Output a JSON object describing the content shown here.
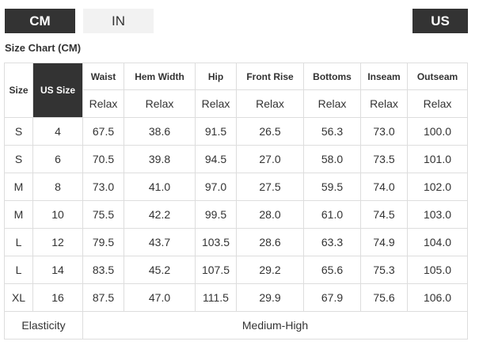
{
  "units": {
    "cm_label": "CM",
    "in_label": "IN",
    "region_label": "US"
  },
  "chart": {
    "title": "Size Chart (CM)"
  },
  "table": {
    "size_header": "Size",
    "us_size_header": "US Size",
    "columns": [
      "Waist",
      "Hem Width",
      "Hip",
      "Front Rise",
      "Bottoms",
      "Inseam",
      "Outseam"
    ],
    "fit": [
      "Relax",
      "Relax",
      "Relax",
      "Relax",
      "Relax",
      "Relax",
      "Relax"
    ],
    "rows": [
      {
        "size": "S",
        "us": "4",
        "values": [
          "67.5",
          "38.6",
          "91.5",
          "26.5",
          "56.3",
          "73.0",
          "100.0"
        ]
      },
      {
        "size": "S",
        "us": "6",
        "values": [
          "70.5",
          "39.8",
          "94.5",
          "27.0",
          "58.0",
          "73.5",
          "101.0"
        ]
      },
      {
        "size": "M",
        "us": "8",
        "values": [
          "73.0",
          "41.0",
          "97.0",
          "27.5",
          "59.5",
          "74.0",
          "102.0"
        ]
      },
      {
        "size": "M",
        "us": "10",
        "values": [
          "75.5",
          "42.2",
          "99.5",
          "28.0",
          "61.0",
          "74.5",
          "103.0"
        ]
      },
      {
        "size": "L",
        "us": "12",
        "values": [
          "79.5",
          "43.7",
          "103.5",
          "28.6",
          "63.3",
          "74.9",
          "104.0"
        ]
      },
      {
        "size": "L",
        "us": "14",
        "values": [
          "83.5",
          "45.2",
          "107.5",
          "29.2",
          "65.6",
          "75.3",
          "105.0"
        ]
      },
      {
        "size": "XL",
        "us": "16",
        "values": [
          "87.5",
          "47.0",
          "111.5",
          "29.9",
          "67.9",
          "75.6",
          "106.0"
        ]
      }
    ],
    "footer": {
      "label": "Elasticity",
      "value": "Medium-High"
    }
  }
}
